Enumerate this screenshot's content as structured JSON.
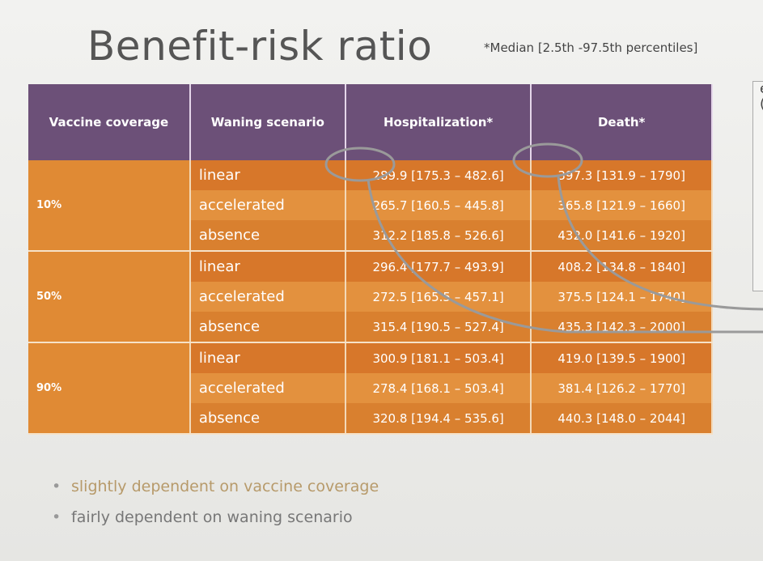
{
  "title": "Benefit-risk ratio",
  "note": "*Median [2.5th -97.5th percentiles]",
  "table": {
    "header": [
      "Vaccine coverage",
      "Waning scenario",
      "Hospitalization*",
      "Death*"
    ],
    "groups": [
      {
        "coverage": "10%",
        "rows": [
          {
            "scenario": "linear",
            "hospitalization": "289.9 [175.3 – 482.6]",
            "death": "397.3 [131.9 – 1790]"
          },
          {
            "scenario": "accelerated",
            "hospitalization": "265.7 [160.5 – 445.8]",
            "death": "365.8 [121.9 – 1660]"
          },
          {
            "scenario": "absence",
            "hospitalization": "312.2 [185.8 – 526.6]",
            "death": "432.0 [141.6 – 1920]"
          }
        ]
      },
      {
        "coverage": "50%",
        "rows": [
          {
            "scenario": "linear",
            "hospitalization": "296.4 [177.7 – 493.9]",
            "death": "408.2 [134.8 – 1840]"
          },
          {
            "scenario": "accelerated",
            "hospitalization": "272.5 [165.5 – 457.1]",
            "death": "375.5 [124.1 – 1740]"
          },
          {
            "scenario": "absence",
            "hospitalization": "315.4 [190.5 – 527.4]",
            "death": "435.3 [142.3 – 2000]"
          }
        ]
      },
      {
        "coverage": "90%",
        "rows": [
          {
            "scenario": "linear",
            "hospitalization": "300.9 [181.1 – 503.4]",
            "death": "419.0 [139.5 – 1900]"
          },
          {
            "scenario": "accelerated",
            "hospitalization": "278.4 [168.1 – 503.4]",
            "death": "381.4 [126.2 – 1770]"
          },
          {
            "scenario": "absence",
            "hospitalization": "320.8 [194.4 – 535.6]",
            "death": "440.3 [148.0 – 2044]"
          }
        ]
      }
    ]
  },
  "side": [
    "exa",
    "(ma"
  ],
  "bullets": [
    "slightly dependent on vaccine coverage",
    "fairly dependent on waning scenario"
  ]
}
